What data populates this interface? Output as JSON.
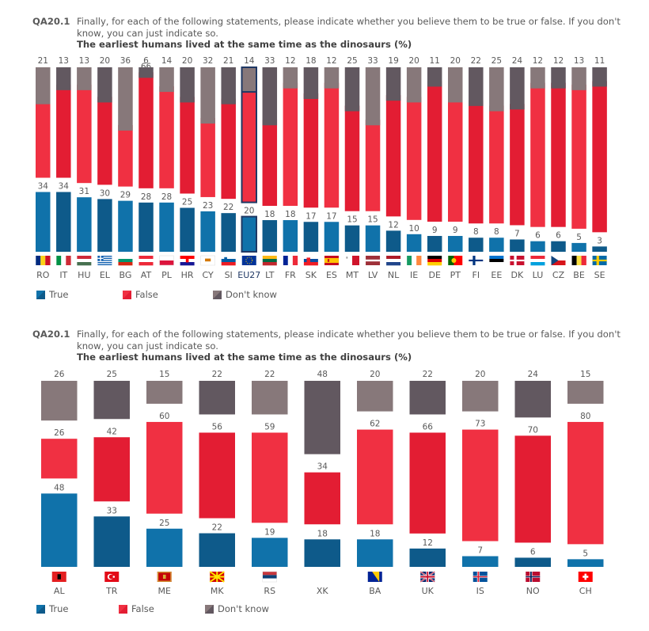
{
  "colors": {
    "true_a": "#1072aa",
    "true_b": "#0e5a8a",
    "false_a": "#f03042",
    "false_b": "#e31d33",
    "dk_a": "#87787a",
    "dk_b": "#625860",
    "highlight_border": "#1f3864",
    "label": "#595959"
  },
  "panels": [
    {
      "question_code": "QA20.1",
      "question_text": "Finally, for each of the following statements, please indicate whether you believe them to be true or false. If you don't know, you can just indicate so.",
      "statement": "The earliest humans lived at the same time as the dinosaurs  (%)",
      "legend": [
        {
          "key": "true",
          "label": "True"
        },
        {
          "key": "false",
          "label": "False"
        },
        {
          "key": "dk",
          "label": "Don't know"
        }
      ]
    },
    {
      "question_code": "QA20.1",
      "question_text": "Finally, for each of the following statements, please indicate whether you believe them to be true or false. If you don't know, you can just indicate so.",
      "statement": "The earliest humans lived at the same time as the dinosaurs  (%)",
      "legend": [
        {
          "key": "true",
          "label": "True"
        },
        {
          "key": "false",
          "label": "False"
        },
        {
          "key": "dk",
          "label": "Don't know"
        }
      ]
    }
  ],
  "chart_data": [
    {
      "type": "bar",
      "stacked": true,
      "title": "The earliest humans lived at the same time as the dinosaurs  (%)",
      "xlabel": "",
      "ylabel": "",
      "ylim": [
        0,
        100
      ],
      "legend_position": "bottom-left",
      "highlight_category": "EU27",
      "categories": [
        "RO",
        "IT",
        "HU",
        "EL",
        "BG",
        "AT",
        "PL",
        "HR",
        "CY",
        "SI",
        "EU27",
        "LT",
        "FR",
        "SK",
        "ES",
        "MT",
        "LV",
        "NL",
        "IE",
        "DE",
        "PT",
        "FI",
        "EE",
        "DK",
        "LU",
        "CZ",
        "BE",
        "SE"
      ],
      "flags": [
        "ro",
        "it",
        "hu",
        "el",
        "bg",
        "at",
        "pl",
        "hr",
        "cy",
        "si",
        "eu",
        "lt",
        "fr",
        "sk",
        "es",
        "mt",
        "lv",
        "nl",
        "ie",
        "de",
        "pt",
        "fi",
        "ee",
        "dk",
        "lu",
        "cz",
        "be",
        "se"
      ],
      "series": [
        {
          "name": "True",
          "key": "true",
          "values": [
            34,
            34,
            31,
            30,
            29,
            28,
            28,
            25,
            23,
            22,
            20,
            18,
            18,
            17,
            17,
            15,
            15,
            12,
            10,
            9,
            9,
            8,
            8,
            7,
            6,
            6,
            5,
            3
          ]
        },
        {
          "name": "False",
          "key": "false",
          "values": [
            45,
            53,
            56,
            50,
            35,
            66,
            58,
            55,
            45,
            57,
            66,
            49,
            70,
            65,
            71,
            60,
            52,
            69,
            70,
            80,
            71,
            70,
            67,
            69,
            82,
            82,
            82,
            86
          ]
        },
        {
          "name": "Don't know",
          "key": "dk",
          "values": [
            21,
            13,
            13,
            20,
            36,
            6,
            14,
            20,
            32,
            21,
            14,
            33,
            12,
            18,
            12,
            25,
            33,
            19,
            20,
            11,
            20,
            22,
            25,
            24,
            12,
            12,
            13,
            11
          ]
        }
      ]
    },
    {
      "type": "bar",
      "stacked": true,
      "title": "The earliest humans lived at the same time as the dinosaurs  (%)",
      "xlabel": "",
      "ylabel": "",
      "ylim": [
        0,
        100
      ],
      "legend_position": "bottom-left",
      "categories": [
        "AL",
        "TR",
        "ME",
        "MK",
        "RS",
        "XK",
        "BA",
        "UK",
        "IS",
        "NO",
        "CH"
      ],
      "flags": [
        "al",
        "tr",
        "me",
        "mk",
        "rs",
        "",
        "ba",
        "uk",
        "is",
        "no",
        "ch"
      ],
      "series": [
        {
          "name": "True",
          "key": "true",
          "values": [
            48,
            33,
            25,
            22,
            19,
            18,
            18,
            12,
            7,
            6,
            5
          ]
        },
        {
          "name": "False",
          "key": "false",
          "values": [
            26,
            42,
            60,
            56,
            59,
            34,
            62,
            66,
            73,
            70,
            80
          ]
        },
        {
          "name": "Don't know",
          "key": "dk",
          "values": [
            26,
            25,
            15,
            22,
            22,
            48,
            20,
            22,
            20,
            24,
            15
          ]
        }
      ]
    }
  ]
}
